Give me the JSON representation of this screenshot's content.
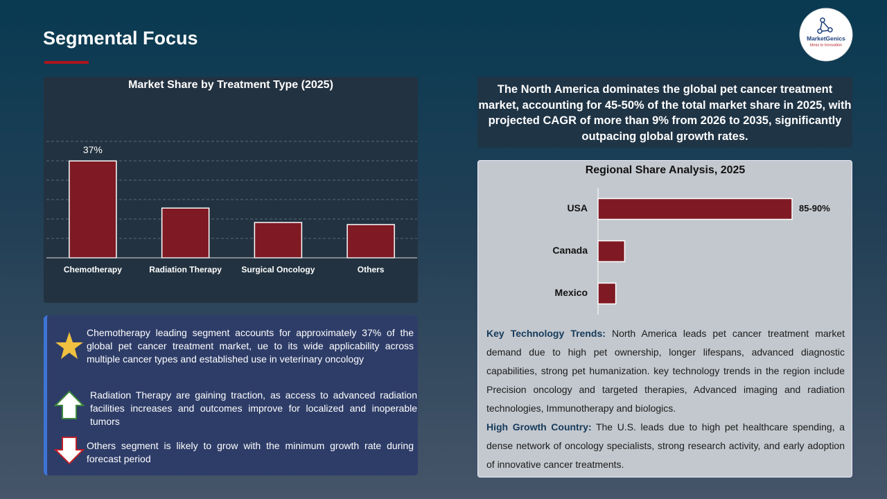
{
  "title": "Segmental Focus",
  "logo": {
    "name": "MarketGenics",
    "tagline": "Ideas to Innovation"
  },
  "chart_data": [
    {
      "type": "bar",
      "orientation": "vertical",
      "title": "Market Share by Treatment Type (2025)",
      "categories": [
        "Chemotherapy",
        "Radiation Therapy",
        "Surgical Oncology",
        "Others"
      ],
      "values": [
        37,
        19,
        13.5,
        12.7
      ],
      "value_labels": [
        "37%",
        null,
        null,
        null
      ],
      "color": "#7f1a24",
      "ylim": [
        0,
        45
      ]
    },
    {
      "type": "bar",
      "orientation": "horizontal",
      "title": "Regional Share Analysis, 2025",
      "categories": [
        "USA",
        "Canada",
        "Mexico"
      ],
      "values": [
        87.5,
        12,
        8
      ],
      "value_labels": [
        "85-90%",
        null,
        null
      ],
      "color": "#7f1a24",
      "xlim": [
        0,
        100
      ]
    }
  ],
  "highlight": "The North America dominates the global pet cancer treatment market, accounting for 45-50% of the total market share in 2025, with projected CAGR of more than 9% from 2026 to 2035, significantly outpacing global growth rates.",
  "bullets": [
    "Chemotherapy leading segment accounts for approximately 37% of the global pet cancer treatment market, ue to its wide applicability across multiple cancer types and established use in veterinary oncology",
    "Radiation Therapy are gaining traction, as access to advanced radiation facilities increases and outcomes improve for localized and inoperable tumors",
    "Others segment is likely to grow with the minimum growth rate during forecast period"
  ],
  "notes": [
    {
      "label": "Key Technology Trends:",
      "text": "North America leads pet cancer treatment market demand due to high pet ownership, longer lifespans, advanced diagnostic capabilities, strong pet humanization. key technology trends in the region include Precision oncology and targeted therapies, Advanced imaging and radiation technologies, Immunotherapy and biologics."
    },
    {
      "label": "High Growth Country:",
      "text": "The U.S. leads due to high pet healthcare spending, a dense network of oncology specialists, strong research activity, and early adoption of innovative cancer treatments."
    }
  ]
}
